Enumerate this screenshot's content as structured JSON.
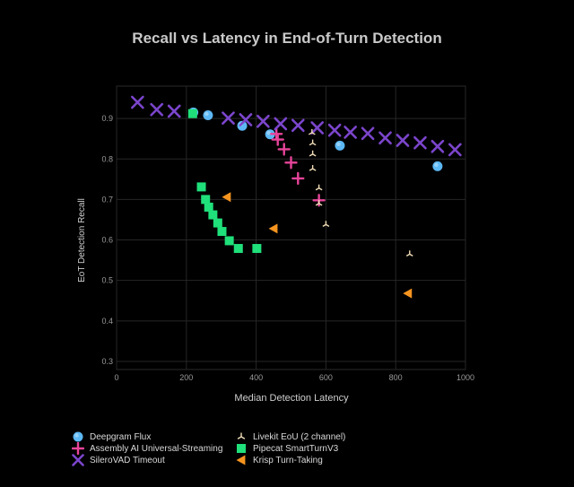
{
  "chart_data": {
    "type": "scatter",
    "title": "Recall vs Latency in End-of-Turn Detection",
    "xlabel": "Median Detection Latency",
    "ylabel": "EoT Detection Recall",
    "xlim": [
      0,
      1000
    ],
    "ylim": [
      0.28,
      0.98
    ],
    "x_ticks": [
      0,
      200,
      400,
      600,
      800,
      1000
    ],
    "y_ticks": [
      0.3,
      0.4,
      0.5,
      0.6,
      0.7,
      0.8,
      0.9
    ],
    "grid": true,
    "legend_placement": "bottom",
    "series": [
      {
        "name": "Deepgram Flux",
        "marker": "circle",
        "color": "#5cb8f5",
        "x": [
          220,
          262,
          360,
          440,
          640,
          920
        ],
        "y": [
          0.915,
          0.908,
          0.882,
          0.861,
          0.833,
          0.782
        ]
      },
      {
        "name": "Assembly AI Universal-Streaming",
        "marker": "plus",
        "color": "#e8449a",
        "x": [
          458,
          462,
          480,
          500,
          520,
          580
        ],
        "y": [
          0.862,
          0.848,
          0.824,
          0.791,
          0.752,
          0.698
        ]
      },
      {
        "name": "SileroVAD Timeout",
        "marker": "x",
        "color": "#7b45cc",
        "x": [
          60,
          115,
          165,
          320,
          370,
          420,
          470,
          520,
          575,
          625,
          670,
          720,
          770,
          820,
          870,
          920,
          970
        ],
        "y": [
          0.94,
          0.922,
          0.918,
          0.901,
          0.897,
          0.893,
          0.887,
          0.883,
          0.877,
          0.871,
          0.866,
          0.863,
          0.852,
          0.846,
          0.84,
          0.831,
          0.823
        ]
      },
      {
        "name": "Livekit EoU (2 channel)",
        "marker": "tri",
        "color": "#f2deb8",
        "x": [
          560,
          562,
          562,
          562,
          580,
          580,
          600,
          840
        ],
        "y": [
          0.865,
          0.839,
          0.812,
          0.776,
          0.728,
          0.69,
          0.638,
          0.565
        ]
      },
      {
        "name": "Pipecat SmartTurnV3",
        "marker": "square",
        "color": "#1fe07a",
        "x": [
          218,
          243,
          255,
          264,
          276,
          290,
          302,
          323,
          349,
          402
        ],
        "y": [
          0.912,
          0.731,
          0.7,
          0.681,
          0.662,
          0.642,
          0.621,
          0.598,
          0.579,
          0.579
        ]
      },
      {
        "name": "Krisp Turn-Taking",
        "marker": "triangle-left",
        "color": "#f5941f",
        "x": [
          316,
          450,
          835
        ],
        "y": [
          0.706,
          0.628,
          0.468
        ]
      }
    ]
  },
  "legend": [
    {
      "label": "Deepgram Flux",
      "marker": "circle",
      "color": "#5cb8f5"
    },
    {
      "label": "Assembly AI Universal-Streaming",
      "marker": "plus",
      "color": "#e8449a"
    },
    {
      "label": "SileroVAD Timeout",
      "marker": "x",
      "color": "#7b45cc"
    },
    {
      "label": "Livekit EoU (2 channel)",
      "marker": "tri",
      "color": "#f2deb8"
    },
    {
      "label": "Pipecat SmartTurnV3",
      "marker": "square",
      "color": "#1fe07a"
    },
    {
      "label": "Krisp Turn-Taking",
      "marker": "triangle-left",
      "color": "#f5941f"
    }
  ]
}
